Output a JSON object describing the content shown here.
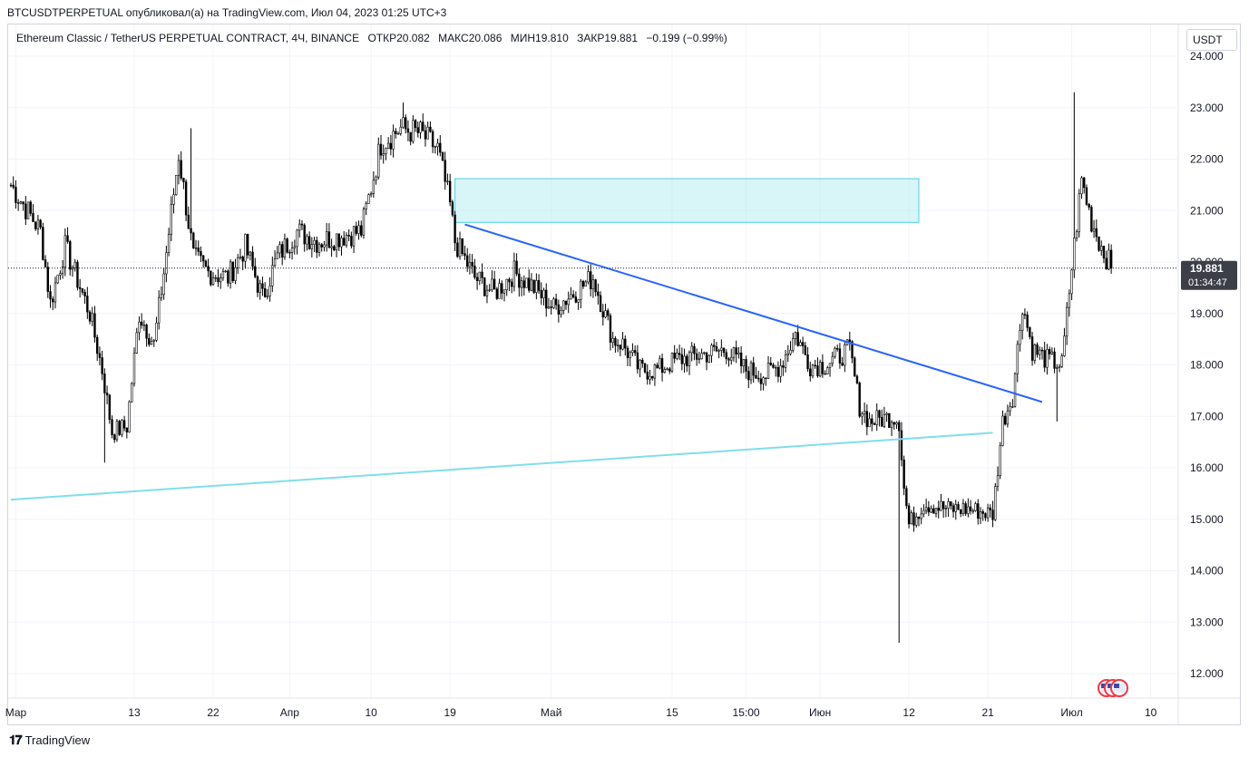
{
  "header": {
    "published_by": "BTCUSDTPERPETUAL опубликовал(а) на TradingView.com, Июл 04, 2023 01:25 UTC+3"
  },
  "symbol": {
    "name": "Ethereum Classic / TetherUS PERPETUAL CONTRACT, 4Ч, BINANCE",
    "open": "ОТКР20.082",
    "high": "МАКС20.086",
    "low": "МИН19.810",
    "close": "ЗАКР19.881",
    "change": "−0.199 (−0.99%)"
  },
  "currency": "USDT",
  "footer": {
    "brand": "TradingView",
    "logo_icon": "tradingview-logo-icon"
  },
  "chart_data": {
    "type": "candlestick",
    "y_ticks": [
      "24.000",
      "23.000",
      "22.000",
      "21.000",
      "20.000",
      "19.000",
      "18.000",
      "17.000",
      "16.000",
      "15.000",
      "14.000",
      "13.000",
      "12.000"
    ],
    "ylim": [
      11.75,
      24.4
    ],
    "x_ticks": [
      {
        "label": "Мар",
        "idx": 2
      },
      {
        "label": "13",
        "idx": 50
      },
      {
        "label": "22",
        "idx": 82
      },
      {
        "label": "Апр",
        "idx": 113
      },
      {
        "label": "10",
        "idx": 146
      },
      {
        "label": "19",
        "idx": 178
      },
      {
        "label": "Май",
        "idx": 219
      },
      {
        "label": "15",
        "idx": 268
      },
      {
        "label": "15:00",
        "idx": 298
      },
      {
        "label": "Июн",
        "idx": 328
      },
      {
        "label": "12",
        "idx": 364
      },
      {
        "label": "21",
        "idx": 396
      },
      {
        "label": "Июл",
        "idx": 430
      },
      {
        "label": "10",
        "idx": 462
      }
    ],
    "waypoints": [
      [
        0,
        21.5
      ],
      [
        12,
        20.6
      ],
      [
        16,
        19.2
      ],
      [
        22,
        20.3
      ],
      [
        32,
        19.0
      ],
      [
        37,
        17.9
      ],
      [
        41,
        16.7
      ],
      [
        47,
        16.8
      ],
      [
        52,
        19.0
      ],
      [
        58,
        18.4
      ],
      [
        62,
        19.8
      ],
      [
        68,
        22.1
      ],
      [
        74,
        20.1
      ],
      [
        80,
        19.8
      ],
      [
        88,
        19.7
      ],
      [
        95,
        20.3
      ],
      [
        102,
        19.3
      ],
      [
        108,
        20.1
      ],
      [
        116,
        20.6
      ],
      [
        124,
        20.4
      ],
      [
        133,
        20.5
      ],
      [
        142,
        20.6
      ],
      [
        150,
        22.3
      ],
      [
        158,
        22.6
      ],
      [
        166,
        22.5
      ],
      [
        173,
        22.2
      ],
      [
        178,
        21.1
      ],
      [
        180,
        20.4
      ],
      [
        188,
        19.7
      ],
      [
        196,
        19.4
      ],
      [
        204,
        19.8
      ],
      [
        212,
        19.5
      ],
      [
        220,
        19.1
      ],
      [
        228,
        19.4
      ],
      [
        236,
        19.7
      ],
      [
        244,
        18.5
      ],
      [
        248,
        18.4
      ],
      [
        255,
        17.9
      ],
      [
        262,
        17.9
      ],
      [
        270,
        18.1
      ],
      [
        280,
        18.2
      ],
      [
        290,
        18.3
      ],
      [
        298,
        17.9
      ],
      [
        306,
        17.8
      ],
      [
        312,
        18.0
      ],
      [
        318,
        18.6
      ],
      [
        324,
        18.0
      ],
      [
        330,
        18.0
      ],
      [
        340,
        18.3
      ],
      [
        344,
        17.2
      ],
      [
        348,
        16.9
      ],
      [
        358,
        17.0
      ],
      [
        360,
        16.9
      ],
      [
        362,
        15.6
      ],
      [
        364,
        14.9
      ],
      [
        370,
        15.3
      ],
      [
        380,
        15.2
      ],
      [
        388,
        15.2
      ],
      [
        398,
        15.1
      ],
      [
        402,
        16.9
      ],
      [
        406,
        17.4
      ],
      [
        410,
        19.2
      ],
      [
        414,
        18.3
      ],
      [
        420,
        18.1
      ],
      [
        426,
        18.0
      ],
      [
        430,
        19.9
      ],
      [
        434,
        21.6
      ],
      [
        438,
        20.8
      ],
      [
        442,
        20.3
      ],
      [
        446,
        19.9
      ]
    ],
    "spikes": [
      [
        360,
        12.6
      ],
      [
        431,
        23.3
      ],
      [
        73,
        22.6
      ],
      [
        159,
        23.1
      ],
      [
        38,
        16.1
      ],
      [
        424,
        16.9
      ]
    ],
    "candle_count": 447,
    "last_price": "19.881",
    "countdown": "01:34:47",
    "last_close": 19.881,
    "drawings": [
      {
        "name": "supply-zone",
        "kind": "rect",
        "from_idx": 180,
        "to_idx": 368,
        "top": 21.62,
        "bottom": 20.77,
        "color": "#b2ebf2"
      },
      {
        "name": "descending-trendline",
        "kind": "line",
        "from_idx": 184,
        "from_y": 20.73,
        "to_idx": 418,
        "to_y": 17.28,
        "color": "#2962ff"
      },
      {
        "name": "ascending-support-line",
        "kind": "line",
        "from_idx": 0,
        "from_y": 15.38,
        "to_idx": 398,
        "to_y": 16.68,
        "color": "#80deea"
      }
    ]
  }
}
